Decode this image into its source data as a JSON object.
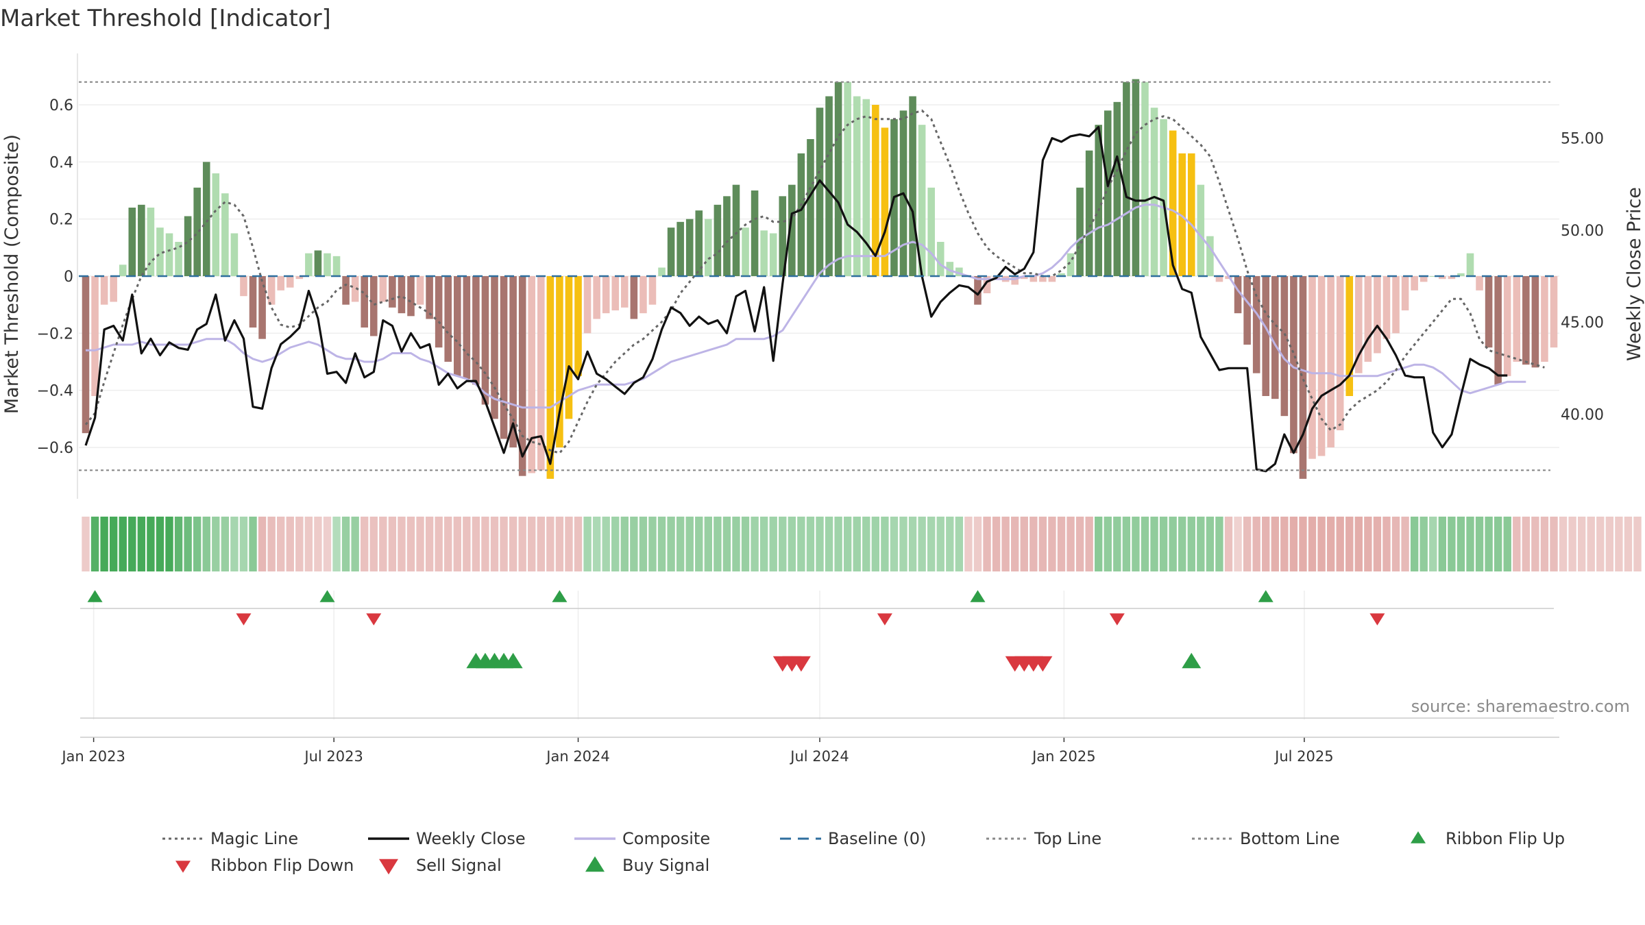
{
  "title": "Market Threshold [Indicator]",
  "source": "source: sharemaestro.com",
  "colors": {
    "pos_strong": "#5e8c5a",
    "pos_light": "#b0dcb0",
    "neg_strong": "#a8756f",
    "neg_light": "#ebbdb8",
    "extreme": "#f6c012",
    "weekly": "#111111",
    "composite": "#bdb4e6",
    "magic": "#666666",
    "baseline": "#2e6e9e",
    "buy": "#2e9e47",
    "sell": "#d9383f"
  },
  "chart_data": {
    "type": "bar",
    "title": "Market Threshold [Indicator]",
    "ylabel_left": "Market Threshold (Composite)",
    "ylabel_right": "Weekly Close Price",
    "ylim_left": [
      -0.78,
      0.78
    ],
    "ylim_right": [
      35.4,
      59.6
    ],
    "yticks_left": [
      "0.6",
      "0.4",
      "0.2",
      "0",
      "−0.2",
      "−0.4",
      "−0.6"
    ],
    "yticks_right": [
      "55.00",
      "50.00",
      "45.00",
      "40.00"
    ],
    "xticks": [
      "Jan 2023",
      "Jul 2023",
      "Jan 2024",
      "Jul 2024",
      "Jan 2025",
      "Jul 2025"
    ],
    "x_start": "2022-12-26",
    "x_interval": "weekly",
    "top_line": 0.68,
    "bottom_line": -0.68,
    "baseline": 0,
    "series": [
      {
        "name": "Composite",
        "values": [
          -0.55,
          -0.42,
          -0.1,
          -0.09,
          0.04,
          0.24,
          0.25,
          0.24,
          0.17,
          0.15,
          0.12,
          0.21,
          0.31,
          0.4,
          0.36,
          0.29,
          0.15,
          -0.07,
          -0.18,
          -0.22,
          -0.1,
          -0.05,
          -0.04,
          -0.01,
          0.08,
          0.09,
          0.08,
          0.07,
          -0.1,
          -0.09,
          -0.18,
          -0.21,
          -0.09,
          -0.11,
          -0.13,
          -0.14,
          -0.1,
          -0.15,
          -0.25,
          -0.3,
          -0.35,
          -0.36,
          -0.38,
          -0.45,
          -0.5,
          -0.57,
          -0.6,
          -0.7,
          -0.69,
          -0.68,
          -0.71,
          -0.6,
          -0.5,
          -0.35,
          -0.2,
          -0.15,
          -0.13,
          -0.12,
          -0.11,
          -0.15,
          -0.13,
          -0.1,
          0.03,
          0.17,
          0.19,
          0.2,
          0.23,
          0.2,
          0.25,
          0.28,
          0.32,
          0.17,
          0.3,
          0.16,
          0.15,
          0.28,
          0.32,
          0.43,
          0.48,
          0.59,
          0.63,
          0.68,
          0.68,
          0.63,
          0.62,
          0.6,
          0.52,
          0.55,
          0.58,
          0.63,
          0.53,
          0.31,
          0.12,
          0.05,
          0.03,
          0,
          -0.1,
          -0.06,
          -0.01,
          -0.02,
          -0.03,
          -0.01,
          -0.02,
          -0.02,
          -0.02,
          0.01,
          0.08,
          0.31,
          0.44,
          0.53,
          0.58,
          0.61,
          0.68,
          0.69,
          0.68,
          0.59,
          0.55,
          0.51,
          0.43,
          0.43,
          0.32,
          0.14,
          -0.02,
          -0.01,
          -0.13,
          -0.24,
          -0.34,
          -0.42,
          -0.43,
          -0.49,
          -0.62,
          -0.71,
          -0.64,
          -0.63,
          -0.6,
          -0.54,
          -0.42,
          -0.34,
          -0.3,
          -0.27,
          -0.22,
          -0.2,
          -0.12,
          -0.05,
          -0.02,
          0,
          -0.01,
          -0.01,
          0.01,
          0.08,
          -0.05,
          -0.25,
          -0.38,
          -0.35,
          -0.3,
          -0.31,
          -0.32,
          -0.3,
          -0.25
        ]
      },
      {
        "name": "Weekly Close",
        "values": [
          38.3,
          39.8,
          44.6,
          44.8,
          44.0,
          46.5,
          43.3,
          44.1,
          43.2,
          43.9,
          43.6,
          43.5,
          44.6,
          44.9,
          46.5,
          44.0,
          45.1,
          44.1,
          40.4,
          40.3,
          42.5,
          43.8,
          44.2,
          44.7,
          46.7,
          45.2,
          42.2,
          42.3,
          41.7,
          43.3,
          42.0,
          42.3,
          45.1,
          44.8,
          43.4,
          44.4,
          43.6,
          43.8,
          41.6,
          42.2,
          41.4,
          41.8,
          41.8,
          40.7,
          39.3,
          37.9,
          39.5,
          37.7,
          38.7,
          38.8,
          37.3,
          40.1,
          42.6,
          41.9,
          43.4,
          42.2,
          41.9,
          41.5,
          41.1,
          41.7,
          42.0,
          43.0,
          44.6,
          45.8,
          45.5,
          44.8,
          45.3,
          44.9,
          45.1,
          44.4,
          46.4,
          46.7,
          44.5,
          46.9,
          42.9,
          47.1,
          50.9,
          51.1,
          51.9,
          52.7,
          52.1,
          51.5,
          50.3,
          49.9,
          49.3,
          48.6,
          49.9,
          51.8,
          52.0,
          51.0,
          47.5,
          45.3,
          46.1,
          46.6,
          47.0,
          46.9,
          46.5,
          47.2,
          47.4,
          48.0,
          47.6,
          47.9,
          48.8,
          53.8,
          55.0,
          54.8,
          55.1,
          55.2,
          55.1,
          55.6,
          52.4,
          54.0,
          51.8,
          51.6,
          51.6,
          51.8,
          51.6,
          48.1,
          46.8,
          46.6,
          44.2,
          43.3,
          42.4,
          42.5,
          42.5,
          42.5,
          37.0,
          36.9,
          37.3,
          38.9,
          37.9,
          38.9,
          40.3,
          41.0,
          41.3,
          41.6,
          42.1,
          43.2,
          44.1,
          44.8,
          44.1,
          43.2,
          42.1,
          42.0,
          42.0,
          39.0,
          38.2,
          38.9,
          41.0,
          43.0,
          42.7,
          42.5,
          42.1,
          42.1
        ]
      },
      {
        "name": "Composite (line)",
        "values": [
          -0.26,
          -0.26,
          -0.25,
          -0.24,
          -0.24,
          -0.24,
          -0.23,
          -0.24,
          -0.24,
          -0.24,
          -0.24,
          -0.24,
          -0.23,
          -0.22,
          -0.22,
          -0.22,
          -0.24,
          -0.27,
          -0.29,
          -0.3,
          -0.29,
          -0.27,
          -0.25,
          -0.24,
          -0.23,
          -0.24,
          -0.26,
          -0.28,
          -0.29,
          -0.29,
          -0.3,
          -0.3,
          -0.29,
          -0.27,
          -0.27,
          -0.27,
          -0.29,
          -0.3,
          -0.32,
          -0.34,
          -0.35,
          -0.36,
          -0.38,
          -0.41,
          -0.43,
          -0.44,
          -0.45,
          -0.46,
          -0.46,
          -0.46,
          -0.46,
          -0.44,
          -0.42,
          -0.4,
          -0.39,
          -0.38,
          -0.38,
          -0.38,
          -0.38,
          -0.37,
          -0.36,
          -0.34,
          -0.32,
          -0.3,
          -0.29,
          -0.28,
          -0.27,
          -0.26,
          -0.25,
          -0.24,
          -0.22,
          -0.22,
          -0.22,
          -0.22,
          -0.21,
          -0.19,
          -0.14,
          -0.09,
          -0.04,
          0.01,
          0.04,
          0.06,
          0.07,
          0.07,
          0.07,
          0.07,
          0.07,
          0.09,
          0.11,
          0.12,
          0.11,
          0.08,
          0.04,
          0.02,
          0.01,
          0,
          -0.01,
          -0.01,
          -0.01,
          -0.01,
          -0.01,
          0,
          0,
          0.01,
          0.03,
          0.06,
          0.1,
          0.13,
          0.15,
          0.17,
          0.18,
          0.2,
          0.22,
          0.24,
          0.25,
          0.25,
          0.24,
          0.23,
          0.21,
          0.18,
          0.14,
          0.1,
          0.05,
          0,
          -0.05,
          -0.09,
          -0.13,
          -0.18,
          -0.24,
          -0.29,
          -0.32,
          -0.33,
          -0.34,
          -0.34,
          -0.34,
          -0.35,
          -0.35,
          -0.35,
          -0.35,
          -0.35,
          -0.34,
          -0.33,
          -0.32,
          -0.31,
          -0.31,
          -0.32,
          -0.34,
          -0.37,
          -0.4,
          -0.41,
          -0.4,
          -0.39,
          -0.38,
          -0.37,
          -0.37,
          -0.37
        ]
      },
      {
        "name": "Magic Line",
        "values": [
          -0.52,
          -0.48,
          -0.37,
          -0.27,
          -0.17,
          -0.08,
          0,
          0.05,
          0.08,
          0.09,
          0.1,
          0.12,
          0.15,
          0.19,
          0.23,
          0.26,
          0.25,
          0.21,
          0.1,
          -0.02,
          -0.11,
          -0.17,
          -0.18,
          -0.17,
          -0.14,
          -0.11,
          -0.09,
          -0.05,
          -0.03,
          -0.04,
          -0.06,
          -0.1,
          -0.09,
          -0.08,
          -0.07,
          -0.09,
          -0.11,
          -0.13,
          -0.16,
          -0.2,
          -0.23,
          -0.27,
          -0.3,
          -0.34,
          -0.39,
          -0.45,
          -0.5,
          -0.56,
          -0.58,
          -0.59,
          -0.61,
          -0.62,
          -0.58,
          -0.51,
          -0.44,
          -0.38,
          -0.34,
          -0.3,
          -0.27,
          -0.24,
          -0.22,
          -0.19,
          -0.16,
          -0.12,
          -0.06,
          -0.02,
          0.02,
          0.06,
          0.08,
          0.12,
          0.15,
          0.18,
          0.2,
          0.21,
          0.19,
          0.19,
          0.2,
          0.25,
          0.31,
          0.37,
          0.43,
          0.49,
          0.53,
          0.55,
          0.56,
          0.55,
          0.55,
          0.55,
          0.55,
          0.57,
          0.58,
          0.55,
          0.47,
          0.39,
          0.3,
          0.22,
          0.15,
          0.1,
          0.07,
          0.05,
          0.03,
          0.01,
          0.01,
          0,
          0,
          0.02,
          0.05,
          0.11,
          0.17,
          0.23,
          0.31,
          0.37,
          0.44,
          0.5,
          0.53,
          0.55,
          0.56,
          0.55,
          0.52,
          0.49,
          0.46,
          0.42,
          0.33,
          0.23,
          0.13,
          0.02,
          -0.07,
          -0.13,
          -0.17,
          -0.2,
          -0.27,
          -0.36,
          -0.43,
          -0.5,
          -0.54,
          -0.52,
          -0.47,
          -0.44,
          -0.42,
          -0.4,
          -0.37,
          -0.33,
          -0.28,
          -0.24,
          -0.2,
          -0.16,
          -0.12,
          -0.08,
          -0.08,
          -0.13,
          -0.22,
          -0.26,
          -0.27,
          -0.28,
          -0.29,
          -0.3,
          -0.31,
          -0.32
        ]
      }
    ],
    "extreme_bars": [
      50,
      51,
      52,
      53,
      85,
      86,
      117,
      118,
      119,
      136
    ],
    "ribbon": {
      "strength": [
        0.3,
        0.9,
        1,
        1,
        1,
        1,
        1,
        1,
        1,
        1,
        0.8,
        0.7,
        0.6,
        0.5,
        0.4,
        0.4,
        0.3,
        0.3,
        0.5,
        0.6,
        0.5,
        0.45,
        0.45,
        0.4,
        0.35,
        0.3,
        0.25,
        0.2,
        0.4,
        0.4,
        0.45,
        0.45,
        0.45,
        0.45,
        0.45,
        0.45,
        0.45,
        0.45,
        0.45,
        0.45,
        0.45,
        0.45,
        0.45,
        0.45,
        0.45,
        0.45,
        0.45,
        0.45,
        0.45,
        0.45,
        0.45,
        0.45,
        0.45,
        0.45,
        0.3,
        0.25,
        0.3,
        0.35,
        0.4,
        0.4,
        0.4,
        0.4,
        0.4,
        0.4,
        0.4,
        0.4,
        0.4,
        0.4,
        0.4,
        0.4,
        0.4,
        0.4,
        0.35,
        0.35,
        0.35,
        0.35,
        0.35,
        0.35,
        0.35,
        0.35,
        0.35,
        0.35,
        0.35,
        0.35,
        0.35,
        0.35,
        0.35,
        0.3,
        0.3,
        0.3,
        0.3,
        0.3,
        0.3,
        0.3,
        0.3,
        0.3,
        0.3,
        0.55,
        0.6,
        0.6,
        0.6,
        0.6,
        0.6,
        0.6,
        0.6,
        0.6,
        0.6,
        0.6,
        0.6,
        0.5,
        0.45,
        0.45,
        0.45,
        0.45,
        0.45,
        0.45,
        0.45,
        0.45,
        0.45,
        0.45,
        0.45,
        0.45,
        0.45,
        0.45,
        0.2,
        0.5,
        0.6,
        0.65,
        0.7,
        0.7,
        0.75,
        0.75,
        0.75,
        0.75,
        0.75,
        0.75,
        0.75,
        0.75,
        0.7,
        0.7,
        0.65,
        0.6,
        0.55,
        0.5,
        0.45,
        0.3,
        0.5,
        0.5,
        0.5,
        0.5,
        0.5,
        0.5,
        0.5,
        0.5,
        0.5,
        0.5,
        0.5,
        0.5,
        0.5,
        0.3,
        0.3,
        0.3,
        0.3,
        0.3,
        0.3,
        0.3,
        0.3,
        0.3
      ],
      "sign": [
        -1,
        1,
        1,
        1,
        1,
        1,
        1,
        1,
        1,
        1,
        1,
        1,
        1,
        1,
        1,
        1,
        1,
        1,
        1,
        -1,
        -1,
        -1,
        -1,
        -1,
        -1,
        -1,
        -1,
        1,
        1,
        1,
        -1,
        -1,
        -1,
        -1,
        -1,
        -1,
        -1,
        -1,
        -1,
        -1,
        -1,
        -1,
        -1,
        -1,
        -1,
        -1,
        -1,
        -1,
        -1,
        -1,
        -1,
        -1,
        -1,
        -1,
        1,
        1,
        1,
        1,
        1,
        1,
        1,
        1,
        1,
        1,
        1,
        1,
        1,
        1,
        1,
        1,
        1,
        1,
        1,
        1,
        1,
        1,
        1,
        1,
        1,
        1,
        1,
        1,
        1,
        1,
        1,
        1,
        1,
        1,
        1,
        1,
        1,
        1,
        1,
        1,
        1,
        -1,
        -1,
        -1,
        -1,
        -1,
        -1,
        -1,
        -1,
        -1,
        -1,
        -1,
        -1,
        -1,
        -1,
        1,
        1,
        1,
        1,
        1,
        1,
        1,
        1,
        1,
        1,
        1,
        1,
        1,
        1,
        -1,
        -1,
        -1,
        -1,
        -1,
        -1,
        -1,
        -1,
        -1,
        -1,
        -1,
        -1,
        -1,
        -1,
        -1,
        -1,
        -1,
        -1,
        -1,
        -1,
        1,
        1,
        1,
        1,
        1,
        1,
        1,
        1,
        1,
        1,
        1,
        -1,
        -1,
        -1,
        -1,
        -1,
        -1,
        -1,
        -1,
        -1,
        -1
      ]
    },
    "ribbon_flip_up": [
      "2023-01-02",
      "2023-06-26",
      "2023-12-18",
      "2024-10-28",
      "2025-06-02"
    ],
    "ribbon_flip_down": [
      "2023-04-24",
      "2023-07-31",
      "2024-08-19",
      "2025-02-10",
      "2025-08-25"
    ],
    "buy_signals": [
      "2023-10-16",
      "2023-10-23",
      "2023-10-30",
      "2023-11-06",
      "2023-11-13",
      "2025-04-07"
    ],
    "sell_signals": [
      "2024-06-03",
      "2024-06-10",
      "2024-06-17",
      "2024-11-25",
      "2024-12-02",
      "2024-12-09",
      "2024-12-16"
    ],
    "legend": [
      {
        "label": "Magic Line",
        "kind": "dotted",
        "color": "#666666"
      },
      {
        "label": "Weekly Close",
        "kind": "solid",
        "color": "#111111"
      },
      {
        "label": "Composite",
        "kind": "solid",
        "color": "#bdb4e6"
      },
      {
        "label": "Baseline (0)",
        "kind": "dashed",
        "color": "#2e6e9e"
      },
      {
        "label": "Top Line",
        "kind": "dotted",
        "color": "#888888"
      },
      {
        "label": "Bottom Line",
        "kind": "dotted",
        "color": "#888888"
      },
      {
        "label": "Ribbon Flip Up",
        "kind": "tri-up",
        "color": "#2e9e47"
      },
      {
        "label": "Ribbon Flip Down",
        "kind": "tri-down",
        "color": "#d9383f"
      },
      {
        "label": "Sell Signal",
        "kind": "tri-down-big",
        "color": "#d9383f"
      },
      {
        "label": "Buy Signal",
        "kind": "tri-up-big",
        "color": "#2e9e47"
      }
    ]
  }
}
